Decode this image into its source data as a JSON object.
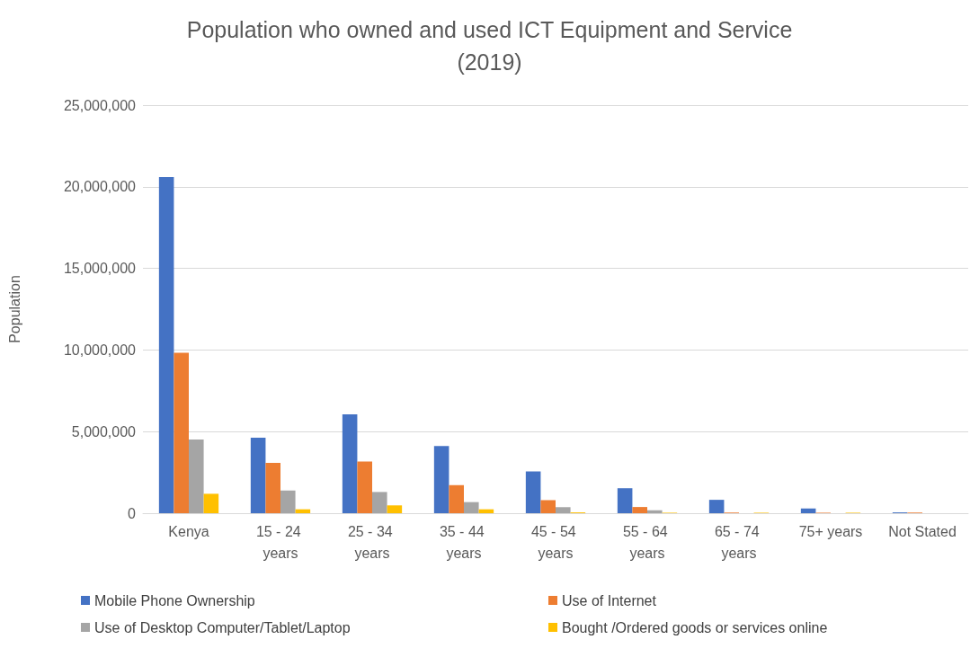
{
  "chart_data": {
    "type": "bar",
    "title": "Population who owned and used ICT Equipment and Service\n(2019)",
    "ylabel": "Population",
    "categories": [
      "Kenya",
      "15 - 24 years",
      "25 - 34 years",
      "35 - 44 years",
      "45 - 54 years",
      "55 - 64 years",
      "65 - 74 years",
      "75+ years",
      "Not Stated"
    ],
    "series": [
      {
        "name": "Mobile Phone Ownership",
        "color": "#4472c4",
        "values": [
          20600000,
          4630000,
          6060000,
          4120000,
          2560000,
          1530000,
          820000,
          290000,
          50000
        ]
      },
      {
        "name": "Use of Internet",
        "color": "#ed7d31",
        "values": [
          9830000,
          3080000,
          3170000,
          1720000,
          800000,
          380000,
          40000,
          30000,
          40000
        ]
      },
      {
        "name": "Use of Desktop Computer/Tablet/Laptop",
        "color": "#a5a5a5",
        "values": [
          4520000,
          1390000,
          1300000,
          680000,
          370000,
          180000,
          null,
          null,
          null
        ]
      },
      {
        "name": "Bought /Ordered goods or services online",
        "color": "#ffc000",
        "values": [
          1190000,
          240000,
          480000,
          240000,
          50000,
          30000,
          30000,
          30000,
          null
        ]
      }
    ],
    "ylim": [
      0,
      25000000
    ],
    "yticks": [
      {
        "value": 0,
        "label": "0"
      },
      {
        "value": 5000000,
        "label": "5,000,000"
      },
      {
        "value": 10000000,
        "label": "10,000,000"
      },
      {
        "value": 15000000,
        "label": "15,000,000"
      },
      {
        "value": 20000000,
        "label": "20,000,000"
      },
      {
        "value": 25000000,
        "label": "25,000,000"
      }
    ],
    "grid": "y",
    "legend": "bottom"
  }
}
